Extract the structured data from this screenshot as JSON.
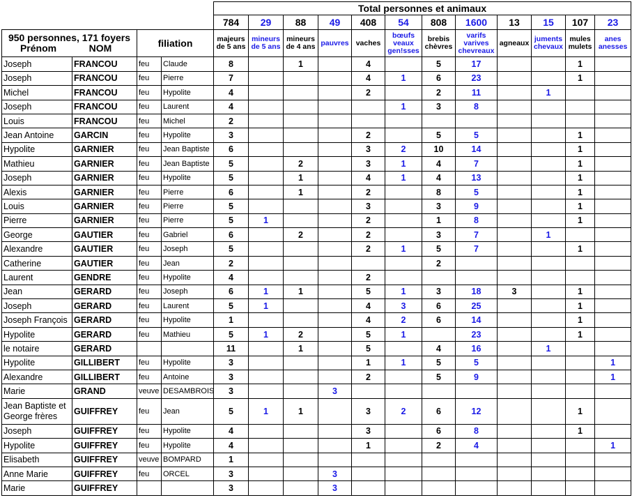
{
  "header": {
    "total_title": "Total personnes et animaux",
    "persons_foyers": "950 personnes, 171 foyers",
    "prenom": "Prénom",
    "nom": "NOM",
    "filiation": "filiation"
  },
  "columns": [
    {
      "total": "784",
      "label": "majeurs de 5 ans",
      "blue": false
    },
    {
      "total": "29",
      "label": "mineurs de 5 ans",
      "blue": true
    },
    {
      "total": "88",
      "label": "mineurs de 4 ans",
      "blue": false
    },
    {
      "total": "49",
      "label": "pauvres",
      "blue": true
    },
    {
      "total": "408",
      "label": "vaches",
      "blue": false
    },
    {
      "total": "54",
      "label": "bœufs veaux gen!sses",
      "blue": true
    },
    {
      "total": "808",
      "label": "brebis chèvres",
      "blue": false
    },
    {
      "total": "1600",
      "label": "varifs varives chevreaux",
      "blue": true
    },
    {
      "total": "13",
      "label": "agneaux",
      "blue": false
    },
    {
      "total": "15",
      "label": "juments chevaux",
      "blue": true
    },
    {
      "total": "107",
      "label": "mules mulets",
      "blue": false
    },
    {
      "total": "23",
      "label": "anes anesses",
      "blue": true
    }
  ],
  "rows": [
    {
      "prenom": "Joseph",
      "nom": "FRANCOU",
      "rel": "feu",
      "father": "Claude",
      "v": [
        "8",
        "",
        "1",
        "",
        "4",
        "",
        "5",
        "17",
        "",
        "",
        "1",
        ""
      ]
    },
    {
      "prenom": "Joseph",
      "nom": "FRANCOU",
      "rel": "feu",
      "father": "Pierre",
      "v": [
        "7",
        "",
        "",
        "",
        "4",
        "1",
        "6",
        "23",
        "",
        "",
        "1",
        ""
      ]
    },
    {
      "prenom": "Michel",
      "nom": "FRANCOU",
      "rel": "feu",
      "father": "Hypolite",
      "v": [
        "4",
        "",
        "",
        "",
        "2",
        "",
        "2",
        "11",
        "",
        "1",
        "",
        ""
      ]
    },
    {
      "prenom": "Joseph",
      "nom": "FRANCOU",
      "rel": "feu",
      "father": "Laurent",
      "v": [
        "4",
        "",
        "",
        "",
        "",
        "1",
        "3",
        "8",
        "",
        "",
        "",
        ""
      ]
    },
    {
      "prenom": "Louis",
      "nom": "FRANCOU",
      "rel": "feu",
      "father": "Michel",
      "v": [
        "2",
        "",
        "",
        "",
        "",
        "",
        "",
        "",
        "",
        "",
        "",
        ""
      ]
    },
    {
      "prenom": "Jean Antoine",
      "nom": "GARCIN",
      "rel": "feu",
      "father": "Hypolite",
      "v": [
        "3",
        "",
        "",
        "",
        "2",
        "",
        "5",
        "5",
        "",
        "",
        "1",
        ""
      ]
    },
    {
      "prenom": "Hypolite",
      "nom": "GARNIER",
      "rel": "feu",
      "father": "Jean Baptiste",
      "v": [
        "6",
        "",
        "",
        "",
        "3",
        "2",
        "10",
        "14",
        "",
        "",
        "1",
        ""
      ]
    },
    {
      "prenom": "Mathieu",
      "nom": "GARNIER",
      "rel": "feu",
      "father": "Jean Baptiste",
      "v": [
        "5",
        "",
        "2",
        "",
        "3",
        "1",
        "4",
        "7",
        "",
        "",
        "1",
        ""
      ]
    },
    {
      "prenom": "Joseph",
      "nom": "GARNIER",
      "rel": "feu",
      "father": "Hypolite",
      "v": [
        "5",
        "",
        "1",
        "",
        "4",
        "1",
        "4",
        "13",
        "",
        "",
        "1",
        ""
      ]
    },
    {
      "prenom": "Alexis",
      "nom": "GARNIER",
      "rel": "feu",
      "father": "Pierre",
      "v": [
        "6",
        "",
        "1",
        "",
        "2",
        "",
        "8",
        "5",
        "",
        "",
        "1",
        ""
      ]
    },
    {
      "prenom": "Louis",
      "nom": "GARNIER",
      "rel": "feu",
      "father": "Pierre",
      "v": [
        "5",
        "",
        "",
        "",
        "3",
        "",
        "3",
        "9",
        "",
        "",
        "1",
        ""
      ]
    },
    {
      "prenom": "Pierre",
      "nom": "GARNIER",
      "rel": "feu",
      "father": "Pierre",
      "v": [
        "5",
        "1",
        "",
        "",
        "2",
        "",
        "1",
        "8",
        "",
        "",
        "1",
        ""
      ]
    },
    {
      "prenom": "George",
      "nom": "GAUTIER",
      "rel": "feu",
      "father": "Gabriel",
      "v": [
        "6",
        "",
        "2",
        "",
        "2",
        "",
        "3",
        "7",
        "",
        "1",
        "",
        ""
      ]
    },
    {
      "prenom": "Alexandre",
      "nom": "GAUTIER",
      "rel": "feu",
      "father": "Joseph",
      "v": [
        "5",
        "",
        "",
        "",
        "2",
        "1",
        "5",
        "7",
        "",
        "",
        "1",
        ""
      ]
    },
    {
      "prenom": "Catherine",
      "nom": "GAUTIER",
      "rel": "feu",
      "father": "Jean",
      "v": [
        "2",
        "",
        "",
        "",
        "",
        "",
        "2",
        "",
        "",
        "",
        "",
        ""
      ]
    },
    {
      "prenom": "Laurent",
      "nom": "GENDRE",
      "rel": "feu",
      "father": "Hypolite",
      "v": [
        "4",
        "",
        "",
        "",
        "2",
        "",
        "",
        "",
        "",
        "",
        "",
        ""
      ]
    },
    {
      "prenom": "Jean",
      "nom": "GERARD",
      "rel": "feu",
      "father": "Joseph",
      "v": [
        "6",
        "1",
        "1",
        "",
        "5",
        "1",
        "3",
        "18",
        "3",
        "",
        "1",
        ""
      ]
    },
    {
      "prenom": "Joseph",
      "nom": "GERARD",
      "rel": "feu",
      "father": "Laurent",
      "v": [
        "5",
        "1",
        "",
        "",
        "4",
        "3",
        "6",
        "25",
        "",
        "",
        "1",
        ""
      ]
    },
    {
      "prenom": "Joseph François",
      "nom": "GERARD",
      "rel": "feu",
      "father": "Hypolite",
      "v": [
        "1",
        "",
        "",
        "",
        "4",
        "2",
        "6",
        "14",
        "",
        "",
        "1",
        ""
      ]
    },
    {
      "prenom": "Hypolite",
      "nom": "GERARD",
      "rel": "feu",
      "father": "Mathieu",
      "v": [
        "5",
        "1",
        "2",
        "",
        "5",
        "1",
        "",
        "23",
        "",
        "",
        "1",
        ""
      ]
    },
    {
      "prenom": "le notaire",
      "nom": "GERARD",
      "rel": "",
      "father": "",
      "v": [
        "11",
        "",
        "1",
        "",
        "5",
        "",
        "4",
        "16",
        "",
        "1",
        "",
        ""
      ]
    },
    {
      "prenom": "Hypolite",
      "nom": "GILLIBERT",
      "rel": "feu",
      "father": "Hypolite",
      "v": [
        "3",
        "",
        "",
        "",
        "1",
        "1",
        "5",
        "5",
        "",
        "",
        "",
        "1"
      ]
    },
    {
      "prenom": "Alexandre",
      "nom": "GILLIBERT",
      "rel": "feu",
      "father": "Antoine",
      "v": [
        "3",
        "",
        "",
        "",
        "2",
        "",
        "5",
        "9",
        "",
        "",
        "",
        "1"
      ]
    },
    {
      "prenom": "Marie",
      "nom": "GRAND",
      "rel": "veuve",
      "father": "DESAMBROIS",
      "v": [
        "3",
        "",
        "",
        "3",
        "",
        "",
        "",
        "",
        "",
        "",
        "",
        ""
      ]
    },
    {
      "prenom": "Jean Baptiste et George frères",
      "nom": "GUIFFREY",
      "rel": "feu",
      "father": "Jean",
      "tall": true,
      "v": [
        "5",
        "1",
        "1",
        "",
        "3",
        "2",
        "6",
        "12",
        "",
        "",
        "1",
        ""
      ]
    },
    {
      "prenom": "Joseph",
      "nom": "GUIFFREY",
      "rel": "feu",
      "father": "Hypolite",
      "v": [
        "4",
        "",
        "",
        "",
        "3",
        "",
        "6",
        "8",
        "",
        "",
        "1",
        ""
      ]
    },
    {
      "prenom": "Hypolite",
      "nom": "GUIFFREY",
      "rel": "feu",
      "father": "Hypolite",
      "v": [
        "4",
        "",
        "",
        "",
        "1",
        "",
        "2",
        "4",
        "",
        "",
        "",
        "1"
      ]
    },
    {
      "prenom": "Elisabeth",
      "nom": "GUIFFREY",
      "rel": "veuve",
      "father": "BOMPARD",
      "v": [
        "1",
        "",
        "",
        "",
        "",
        "",
        "",
        "",
        "",
        "",
        "",
        ""
      ]
    },
    {
      "prenom": "Anne Marie",
      "nom": "GUIFFREY",
      "rel": "feu",
      "father": "ORCEL",
      "v": [
        "3",
        "",
        "",
        "3",
        "",
        "",
        "",
        "",
        "",
        "",
        "",
        ""
      ]
    },
    {
      "prenom": "Marie",
      "nom": "GUIFFREY",
      "rel": "",
      "father": "",
      "v": [
        "3",
        "",
        "",
        "3",
        "",
        "",
        "",
        "",
        "",
        "",
        "",
        ""
      ]
    }
  ]
}
